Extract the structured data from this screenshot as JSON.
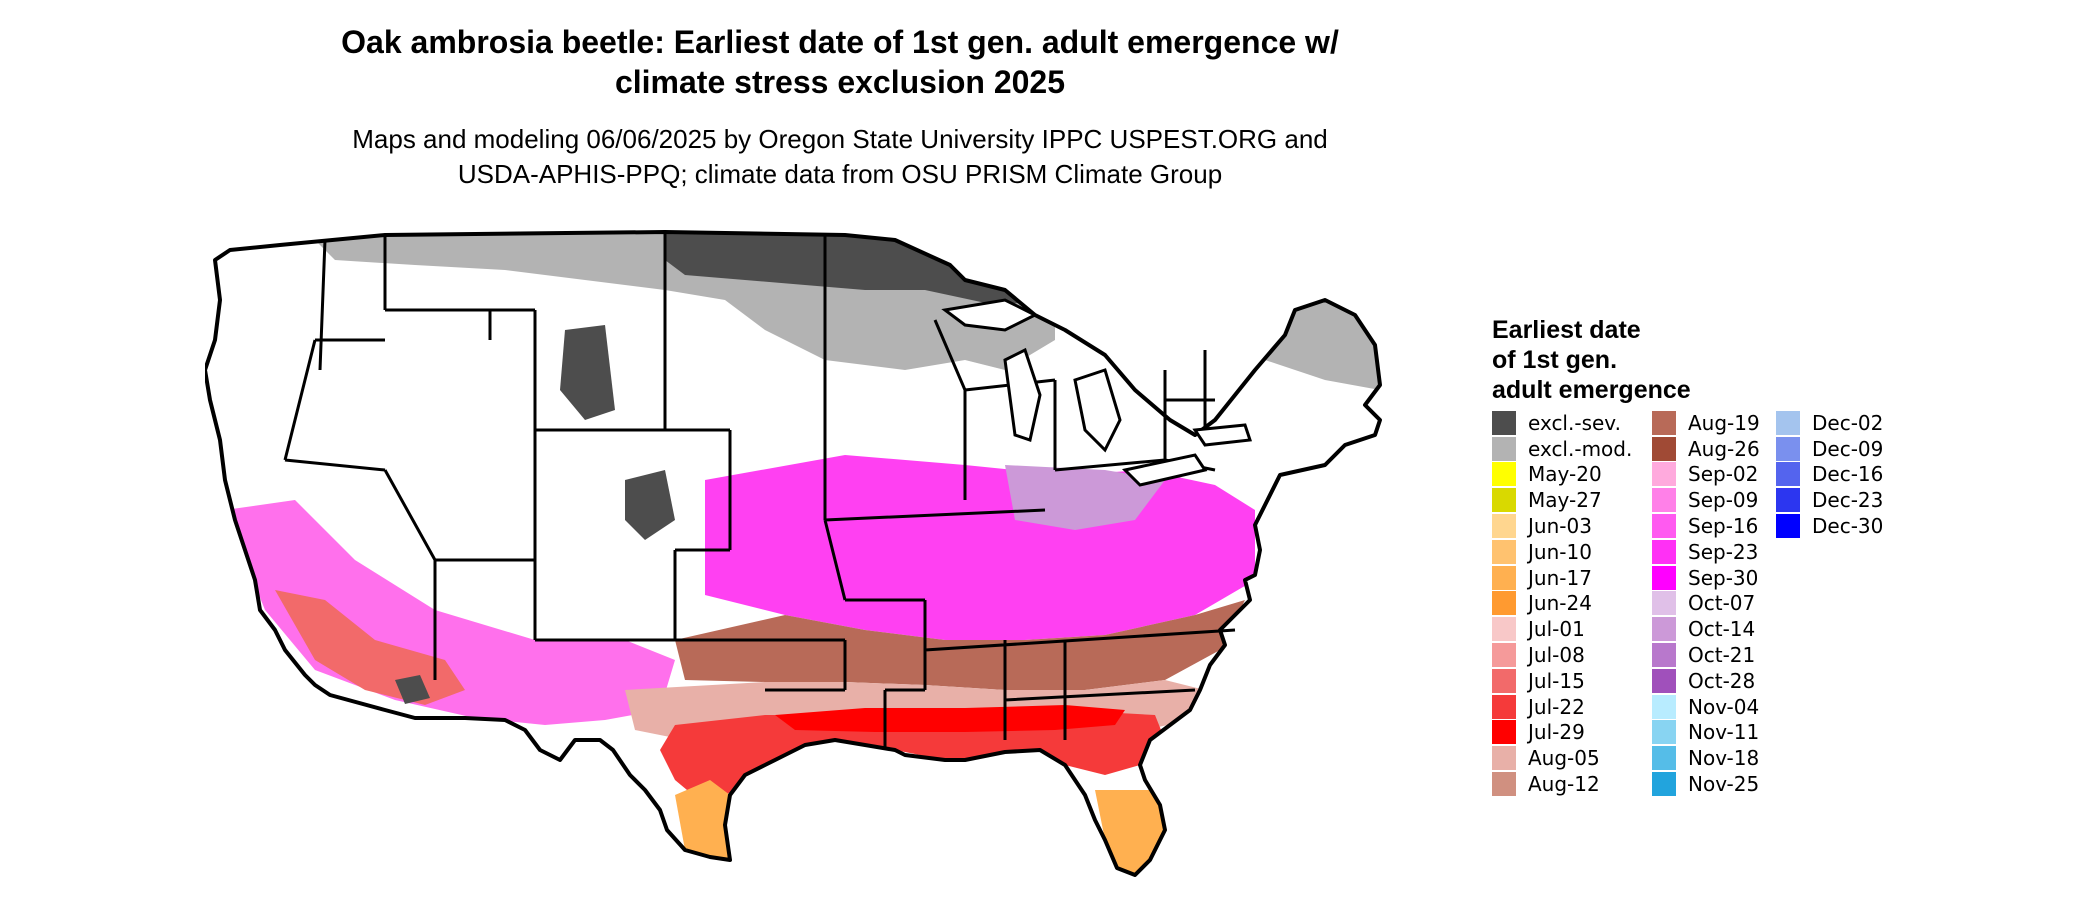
{
  "title_lines": [
    "Oak ambrosia beetle: Earliest date of 1st gen. adult emergence w/",
    "climate stress exclusion 2025"
  ],
  "subtitle_lines": [
    "Maps and modeling 06/06/2025 by Oregon State University IPPC USPEST.ORG and",
    "USDA-APHIS-PPQ; climate data from OSU PRISM Climate Group"
  ],
  "legend": {
    "title_lines": [
      "Earliest date",
      "of 1st gen.",
      "adult emergence"
    ],
    "columns": [
      [
        {
          "label": "excl.-sev.",
          "color": "#4d4d4d"
        },
        {
          "label": "excl.-mod.",
          "color": "#b3b3b3"
        },
        {
          "label": "May-20",
          "color": "#ffff00"
        },
        {
          "label": "May-27",
          "color": "#d9d900"
        },
        {
          "label": "Jun-03",
          "color": "#ffd68f"
        },
        {
          "label": "Jun-10",
          "color": "#ffc26f"
        },
        {
          "label": "Jun-17",
          "color": "#ffb050"
        },
        {
          "label": "Jun-24",
          "color": "#ff9a30"
        },
        {
          "label": "Jul-01",
          "color": "#f8c8c8"
        },
        {
          "label": "Jul-08",
          "color": "#f59a9a"
        },
        {
          "label": "Jul-15",
          "color": "#f26a6a"
        },
        {
          "label": "Jul-22",
          "color": "#f53a3a"
        },
        {
          "label": "Jul-29",
          "color": "#ff0000"
        },
        {
          "label": "Aug-05",
          "color": "#e8b0a8"
        },
        {
          "label": "Aug-12",
          "color": "#d09080"
        }
      ],
      [
        {
          "label": "Aug-19",
          "color": "#b86a58"
        },
        {
          "label": "Aug-26",
          "color": "#a04a35"
        },
        {
          "label": "Sep-02",
          "color": "#ffaadd"
        },
        {
          "label": "Sep-09",
          "color": "#ff80e8"
        },
        {
          "label": "Sep-16",
          "color": "#ff5af0"
        },
        {
          "label": "Sep-23",
          "color": "#ff30f5"
        },
        {
          "label": "Sep-30",
          "color": "#ff00ff"
        },
        {
          "label": "Oct-07",
          "color": "#e0c0e8"
        },
        {
          "label": "Oct-14",
          "color": "#cc99d8"
        },
        {
          "label": "Oct-21",
          "color": "#b878cc"
        },
        {
          "label": "Oct-28",
          "color": "#a050bb"
        },
        {
          "label": "Nov-04",
          "color": "#b8ecff"
        },
        {
          "label": "Nov-11",
          "color": "#88d4f2"
        },
        {
          "label": "Nov-18",
          "color": "#55bde8"
        },
        {
          "label": "Nov-25",
          "color": "#22a4dd"
        }
      ],
      [
        {
          "label": "Dec-02",
          "color": "#a4c4ee"
        },
        {
          "label": "Dec-09",
          "color": "#7a90ee"
        },
        {
          "label": "Dec-16",
          "color": "#5464ee"
        },
        {
          "label": "Dec-23",
          "color": "#2c36f0"
        },
        {
          "label": "Dec-30",
          "color": "#0000ff"
        }
      ]
    ]
  }
}
